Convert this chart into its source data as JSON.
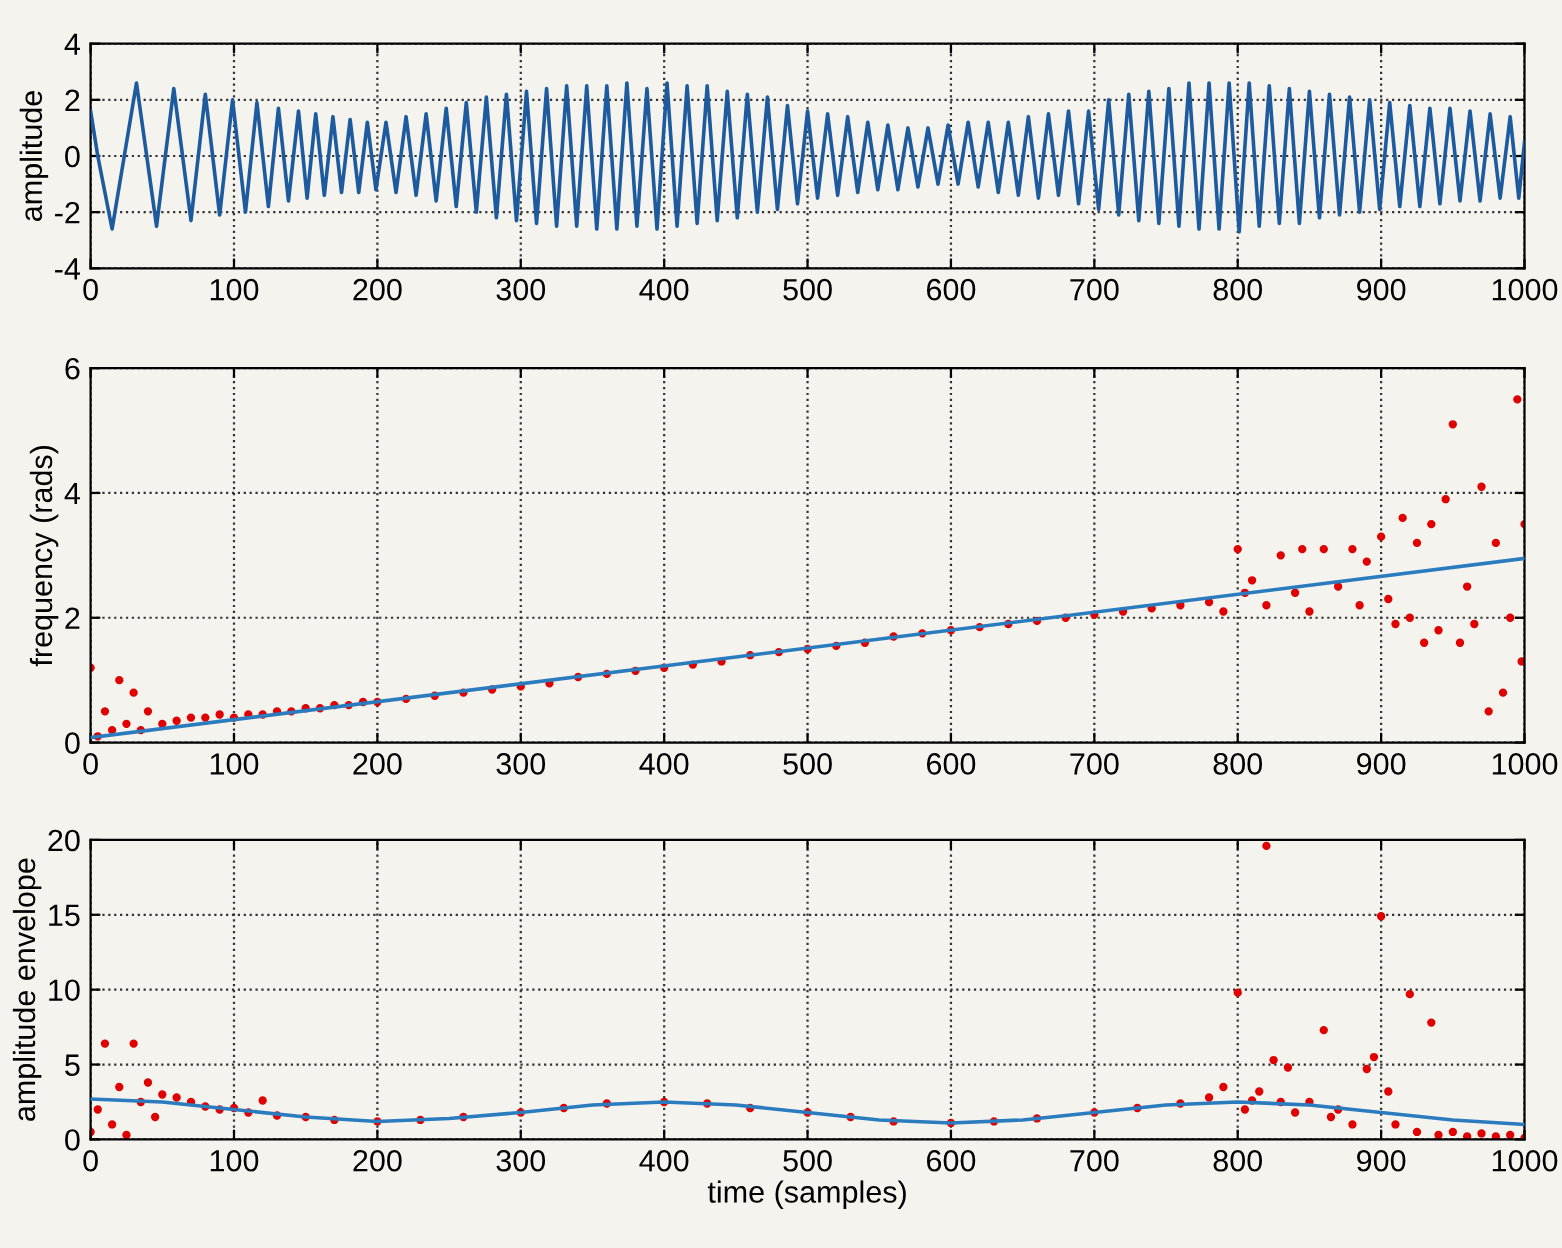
{
  "chart_data": [
    {
      "type": "line",
      "ylabel": "amplitude",
      "xlim": [
        0,
        1000
      ],
      "ylim": [
        -4,
        4
      ],
      "xticks": [
        0,
        100,
        200,
        300,
        400,
        500,
        600,
        700,
        800,
        900,
        1000
      ],
      "yticks": [
        -4,
        -2,
        0,
        2,
        4
      ],
      "grid": true,
      "line_style": "solid",
      "series": [
        {
          "color": "#1d5a9e",
          "x": [
            0,
            5,
            15,
            32,
            46,
            58,
            70,
            80,
            90,
            99,
            108,
            116,
            124,
            131,
            138,
            145,
            151,
            157,
            163,
            169,
            175,
            181,
            187,
            193,
            199,
            206,
            213,
            220,
            227,
            234,
            241,
            248,
            255,
            262,
            269,
            276,
            283,
            290,
            297,
            304,
            311,
            318,
            325,
            332,
            339,
            346,
            353,
            360,
            367,
            374,
            381,
            388,
            395,
            402,
            409,
            416,
            423,
            430,
            437,
            444,
            451,
            458,
            465,
            472,
            479,
            486,
            493,
            500,
            507,
            514,
            521,
            528,
            535,
            542,
            549,
            556,
            563,
            570,
            577,
            584,
            591,
            598,
            605,
            612,
            619,
            626,
            633,
            640,
            647,
            654,
            661,
            668,
            675,
            682,
            689,
            696,
            703,
            710,
            717,
            724,
            731,
            738,
            745,
            752,
            759,
            766,
            773,
            780,
            787,
            794,
            801,
            808,
            815,
            822,
            829,
            836,
            843,
            850,
            857,
            864,
            871,
            878,
            885,
            892,
            899,
            906,
            913,
            920,
            927,
            934,
            941,
            948,
            955,
            962,
            969,
            976,
            983,
            990,
            996,
            1000
          ],
          "values": [
            1.6,
            0,
            -2.6,
            2.6,
            -2.5,
            2.4,
            -2.3,
            2.2,
            -2.1,
            2.0,
            -2.0,
            1.9,
            -1.8,
            1.7,
            -1.6,
            1.6,
            -1.5,
            1.5,
            -1.4,
            1.4,
            -1.3,
            1.3,
            -1.3,
            1.2,
            -1.2,
            1.2,
            -1.3,
            1.4,
            -1.4,
            1.5,
            -1.6,
            1.7,
            -1.8,
            1.9,
            -2.0,
            2.1,
            -2.2,
            2.2,
            -2.3,
            2.3,
            -2.4,
            2.4,
            -2.5,
            2.5,
            -2.5,
            2.5,
            -2.6,
            2.5,
            -2.6,
            2.6,
            -2.5,
            2.4,
            -2.6,
            2.6,
            -2.5,
            2.5,
            -2.4,
            2.5,
            -2.3,
            2.3,
            -2.2,
            2.2,
            -2.0,
            2.1,
            -1.9,
            1.8,
            -1.7,
            1.6,
            -1.5,
            1.5,
            -1.4,
            1.4,
            -1.3,
            1.2,
            -1.2,
            1.1,
            -1.2,
            1.0,
            -1.1,
            1.0,
            -1.0,
            1.1,
            -1.0,
            1.2,
            -1.1,
            1.2,
            -1.3,
            1.2,
            -1.4,
            1.4,
            -1.5,
            1.5,
            -1.4,
            1.6,
            -1.7,
            1.6,
            -1.9,
            2.0,
            -2.1,
            2.2,
            -2.3,
            2.3,
            -2.4,
            2.4,
            -2.5,
            2.6,
            -2.6,
            2.6,
            -2.6,
            2.6,
            -2.7,
            2.6,
            -2.5,
            2.5,
            -2.4,
            2.4,
            -2.4,
            2.3,
            -2.2,
            2.2,
            -2.1,
            2.1,
            -2.0,
            2.0,
            -1.9,
            1.9,
            -1.8,
            1.8,
            -1.8,
            1.7,
            -1.7,
            1.7,
            -1.6,
            1.6,
            -1.6,
            1.5,
            -1.5,
            1.4,
            -1.5,
            0.5
          ]
        }
      ]
    },
    {
      "type": "scatter",
      "ylabel": "frequency (rads)",
      "xlim": [
        0,
        1000
      ],
      "ylim": [
        0,
        6
      ],
      "xticks": [
        0,
        100,
        200,
        300,
        400,
        500,
        600,
        700,
        800,
        900,
        1000
      ],
      "yticks": [
        0,
        2,
        4,
        6
      ],
      "grid": true,
      "series": [
        {
          "marker": "circle",
          "color": "#e00000",
          "x": [
            0,
            5,
            10,
            15,
            20,
            25,
            30,
            35,
            40,
            50,
            60,
            70,
            80,
            90,
            100,
            110,
            120,
            130,
            140,
            150,
            160,
            170,
            180,
            190,
            200,
            220,
            240,
            260,
            280,
            300,
            320,
            340,
            360,
            380,
            400,
            420,
            440,
            460,
            480,
            500,
            520,
            540,
            560,
            580,
            600,
            620,
            640,
            660,
            680,
            700,
            720,
            740,
            760,
            780,
            790,
            800,
            805,
            810,
            820,
            830,
            840,
            845,
            850,
            860,
            870,
            880,
            885,
            890,
            900,
            905,
            910,
            915,
            920,
            925,
            930,
            935,
            940,
            945,
            950,
            955,
            960,
            965,
            970,
            975,
            980,
            985,
            990,
            995,
            998,
            1000
          ],
          "values": [
            1.2,
            0.1,
            0.5,
            0.2,
            1.0,
            0.3,
            0.8,
            0.2,
            0.5,
            0.3,
            0.35,
            0.4,
            0.4,
            0.45,
            0.4,
            0.45,
            0.45,
            0.5,
            0.5,
            0.55,
            0.55,
            0.6,
            0.6,
            0.65,
            0.65,
            0.7,
            0.75,
            0.8,
            0.85,
            0.9,
            0.95,
            1.05,
            1.1,
            1.15,
            1.2,
            1.25,
            1.3,
            1.4,
            1.45,
            1.5,
            1.55,
            1.6,
            1.7,
            1.75,
            1.8,
            1.85,
            1.9,
            1.95,
            2.0,
            2.05,
            2.1,
            2.15,
            2.2,
            2.25,
            2.1,
            3.1,
            2.4,
            2.6,
            2.2,
            3.0,
            2.4,
            3.1,
            2.1,
            3.1,
            2.5,
            3.1,
            2.2,
            2.9,
            3.3,
            2.3,
            1.9,
            3.6,
            2.0,
            3.2,
            1.6,
            3.5,
            1.8,
            3.9,
            5.1,
            1.6,
            2.5,
            1.9,
            4.1,
            0.5,
            3.2,
            0.8,
            2.0,
            5.5,
            1.3,
            3.5
          ]
        },
        {
          "type": "line",
          "color": "#2b7bbf",
          "x": [
            0,
            1000
          ],
          "values": [
            0.08,
            2.95
          ]
        }
      ]
    },
    {
      "type": "scatter",
      "xlabel": "time (samples)",
      "ylabel": "amplitude envelope",
      "xlim": [
        0,
        1000
      ],
      "ylim": [
        0,
        20
      ],
      "xticks": [
        0,
        100,
        200,
        300,
        400,
        500,
        600,
        700,
        800,
        900,
        1000
      ],
      "yticks": [
        0,
        5,
        10,
        15,
        20
      ],
      "grid": true,
      "series": [
        {
          "marker": "circle",
          "color": "#e00000",
          "x": [
            0,
            5,
            10,
            15,
            20,
            25,
            30,
            35,
            40,
            45,
            50,
            60,
            70,
            80,
            90,
            100,
            110,
            120,
            130,
            150,
            170,
            200,
            230,
            260,
            300,
            330,
            360,
            400,
            430,
            460,
            500,
            530,
            560,
            600,
            630,
            660,
            700,
            730,
            760,
            780,
            790,
            800,
            805,
            810,
            815,
            820,
            825,
            830,
            835,
            840,
            850,
            860,
            865,
            870,
            880,
            890,
            895,
            900,
            905,
            910,
            920,
            925,
            935,
            940,
            950,
            960,
            970,
            980,
            990,
            1000
          ],
          "values": [
            0.5,
            2.0,
            6.4,
            1.0,
            3.5,
            0.3,
            6.4,
            2.5,
            3.8,
            1.5,
            3.0,
            2.8,
            2.5,
            2.2,
            2.0,
            2.1,
            1.8,
            2.6,
            1.6,
            1.5,
            1.3,
            1.2,
            1.3,
            1.5,
            1.8,
            2.1,
            2.4,
            2.5,
            2.4,
            2.1,
            1.8,
            1.5,
            1.2,
            1.1,
            1.2,
            1.4,
            1.8,
            2.1,
            2.4,
            2.8,
            3.5,
            9.8,
            2.0,
            2.6,
            3.2,
            19.6,
            5.3,
            2.5,
            4.8,
            1.8,
            2.5,
            7.3,
            1.5,
            2.0,
            1.0,
            4.7,
            5.5,
            14.9,
            3.2,
            1.0,
            9.7,
            0.5,
            7.8,
            0.3,
            0.5,
            0.2,
            0.4,
            0.2,
            0.3,
            0.1
          ]
        },
        {
          "type": "line",
          "color": "#2b7bbf",
          "x": [
            0,
            50,
            100,
            150,
            200,
            250,
            300,
            350,
            400,
            450,
            500,
            550,
            600,
            650,
            700,
            750,
            800,
            850,
            900,
            950,
            1000
          ],
          "values": [
            2.7,
            2.5,
            2.0,
            1.5,
            1.2,
            1.4,
            1.8,
            2.3,
            2.5,
            2.3,
            1.8,
            1.3,
            1.1,
            1.3,
            1.8,
            2.3,
            2.5,
            2.3,
            1.8,
            1.3,
            1.0
          ]
        }
      ]
    }
  ]
}
